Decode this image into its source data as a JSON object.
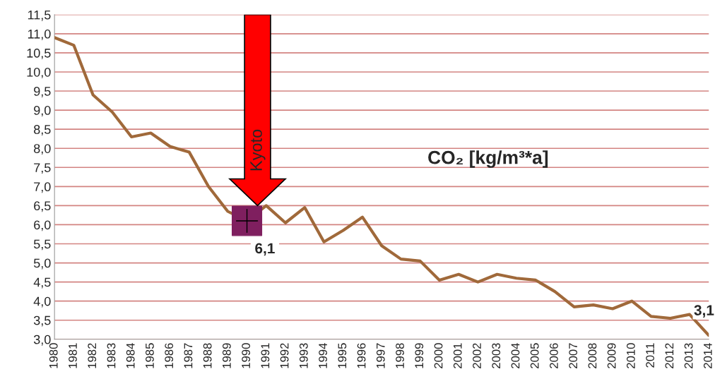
{
  "chart_data": {
    "type": "line",
    "title": "CO₂ [kg/m³*a]",
    "categories": [
      "1980",
      "1981",
      "1982",
      "1983",
      "1984",
      "1985",
      "1986",
      "1987",
      "1988",
      "1989",
      "1990",
      "1991",
      "1992",
      "1993",
      "1994",
      "1995",
      "1996",
      "1997",
      "1998",
      "1999",
      "2000",
      "2001",
      "2002",
      "2003",
      "2004",
      "2005",
      "2006",
      "2007",
      "2008",
      "2009",
      "2010",
      "2011",
      "2012",
      "2013",
      "2014"
    ],
    "series": [
      {
        "color": "#a0693a",
        "values": [
          10.9,
          10.7,
          9.4,
          8.95,
          8.3,
          8.4,
          8.05,
          7.9,
          7.0,
          6.35,
          6.1,
          6.5,
          6.05,
          6.45,
          5.55,
          5.85,
          6.2,
          5.45,
          5.1,
          5.05,
          4.55,
          4.7,
          4.5,
          4.7,
          4.6,
          4.55,
          4.25,
          3.85,
          3.9,
          3.8,
          4.0,
          3.6,
          3.55,
          3.65,
          3.1
        ],
        "value_labels": [
          null,
          null,
          null,
          null,
          null,
          null,
          null,
          null,
          null,
          null,
          null,
          null,
          null,
          null,
          null,
          null,
          null,
          null,
          null,
          null,
          null,
          null,
          null,
          null,
          null,
          null,
          null,
          null,
          null,
          null,
          null,
          null,
          null,
          null,
          "3,1"
        ]
      },
      {
        "type": "scatter",
        "color": "#7f1f5f",
        "marker": "square",
        "values": [
          null,
          null,
          null,
          null,
          null,
          null,
          null,
          null,
          null,
          null,
          6.1,
          null,
          null,
          null,
          null,
          null,
          null,
          null,
          null,
          null,
          null,
          null,
          null,
          null,
          null,
          null,
          null,
          null,
          null,
          null,
          null,
          null,
          null,
          null,
          null
        ],
        "value_labels": [
          null,
          null,
          null,
          null,
          null,
          null,
          null,
          null,
          null,
          null,
          "6,1",
          null,
          null,
          null,
          null,
          null,
          null,
          null,
          null,
          null,
          null,
          null,
          null,
          null,
          null,
          null,
          null,
          null,
          null,
          null,
          null,
          null,
          null,
          null,
          null
        ]
      }
    ],
    "annotations": [
      {
        "text": "Kyoto",
        "x": "1990",
        "y": 6.5
      }
    ],
    "ylim": [
      3.0,
      11.5
    ],
    "yticks": [
      {
        "value": 3.0,
        "label": "3,0"
      },
      {
        "value": 3.5,
        "label": "3,5"
      },
      {
        "value": 4.0,
        "label": "4,0"
      },
      {
        "value": 4.5,
        "label": "4,5"
      },
      {
        "value": 5.0,
        "label": "5,0"
      },
      {
        "value": 5.5,
        "label": "5,5"
      },
      {
        "value": 6.0,
        "label": "6,0"
      },
      {
        "value": 6.5,
        "label": "6,5"
      },
      {
        "value": 7.0,
        "label": "7,0"
      },
      {
        "value": 7.5,
        "label": "7,5"
      },
      {
        "value": 8.0,
        "label": "8,0"
      },
      {
        "value": 8.5,
        "label": "8,5"
      },
      {
        "value": 9.0,
        "label": "9,0"
      },
      {
        "value": 9.5,
        "label": "9,5"
      },
      {
        "value": 10.0,
        "label": "10,0"
      },
      {
        "value": 10.5,
        "label": "10,5"
      },
      {
        "value": 11.0,
        "label": "11,0"
      },
      {
        "value": 11.5,
        "label": "11,5"
      }
    ],
    "grid": "y",
    "legend": false
  }
}
